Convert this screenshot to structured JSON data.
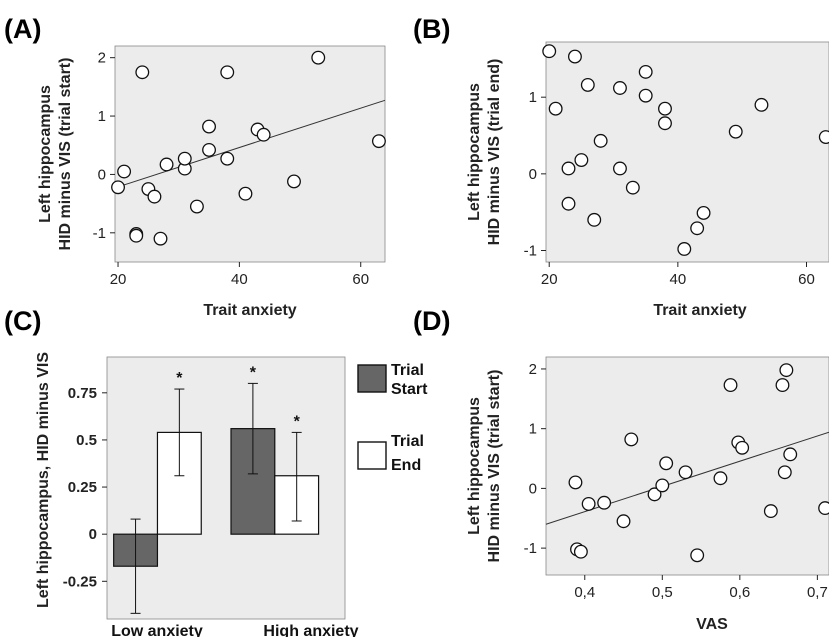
{
  "colors": {
    "plot_bg": "#ececec",
    "point_fill": "#ffffff",
    "point_stroke": "#111111",
    "fit_line": "#333333",
    "bar_start": "#666666",
    "bar_end": "#ffffff",
    "text": "#222222"
  },
  "chart_data": [
    {
      "id": "A",
      "label": "(A)",
      "type": "scatter",
      "xlabel": "Trait anxiety",
      "ylabel_line1": "Left hippocampus",
      "ylabel_line2": "HID minus VIS (trial start)",
      "xlim": [
        19.5,
        64
      ],
      "ylim": [
        -1.5,
        2.2
      ],
      "xticks": [
        20,
        40,
        60
      ],
      "yticks": [
        -1,
        0,
        1,
        2
      ],
      "fit_line": {
        "x": [
          19.5,
          64
        ],
        "y": [
          -0.23,
          1.27
        ]
      },
      "points": [
        {
          "x": 20,
          "y": -0.22
        },
        {
          "x": 21,
          "y": 0.05
        },
        {
          "x": 23,
          "y": -1.02
        },
        {
          "x": 23,
          "y": -1.05
        },
        {
          "x": 24,
          "y": 1.75
        },
        {
          "x": 25,
          "y": -0.25
        },
        {
          "x": 26,
          "y": -0.38
        },
        {
          "x": 27,
          "y": -1.1
        },
        {
          "x": 28,
          "y": 0.17
        },
        {
          "x": 31,
          "y": 0.1
        },
        {
          "x": 31,
          "y": 0.27
        },
        {
          "x": 33,
          "y": -0.55
        },
        {
          "x": 35,
          "y": 0.82
        },
        {
          "x": 35,
          "y": 0.42
        },
        {
          "x": 38,
          "y": 1.75
        },
        {
          "x": 38,
          "y": 0.27
        },
        {
          "x": 41,
          "y": -0.33
        },
        {
          "x": 43,
          "y": 0.77
        },
        {
          "x": 44,
          "y": 0.68
        },
        {
          "x": 49,
          "y": -0.12
        },
        {
          "x": 53,
          "y": 2.0
        },
        {
          "x": 63,
          "y": 0.57
        }
      ]
    },
    {
      "id": "B",
      "label": "(B)",
      "type": "scatter",
      "xlabel": "Trait anxiety",
      "ylabel_line1": "Left hippocampus",
      "ylabel_line2": "HID minus VIS (trial end)",
      "xlim": [
        19.5,
        63.5
      ],
      "ylim": [
        -1.15,
        1.72
      ],
      "xticks": [
        20,
        40,
        60
      ],
      "yticks": [
        -1,
        0,
        1
      ],
      "points": [
        {
          "x": 20,
          "y": 1.6
        },
        {
          "x": 21,
          "y": 0.85
        },
        {
          "x": 23,
          "y": 0.07
        },
        {
          "x": 23,
          "y": -0.39
        },
        {
          "x": 24,
          "y": 1.53
        },
        {
          "x": 25,
          "y": 0.18
        },
        {
          "x": 26,
          "y": 1.16
        },
        {
          "x": 27,
          "y": -0.6
        },
        {
          "x": 28,
          "y": 0.43
        },
        {
          "x": 31,
          "y": 1.12
        },
        {
          "x": 31,
          "y": 0.07
        },
        {
          "x": 33,
          "y": -0.18
        },
        {
          "x": 35,
          "y": 1.33
        },
        {
          "x": 35,
          "y": 1.02
        },
        {
          "x": 38,
          "y": 0.85
        },
        {
          "x": 38,
          "y": 0.66
        },
        {
          "x": 41,
          "y": -0.98
        },
        {
          "x": 43,
          "y": -0.71
        },
        {
          "x": 44,
          "y": -0.51
        },
        {
          "x": 49,
          "y": 0.55
        },
        {
          "x": 53,
          "y": 0.9
        },
        {
          "x": 63,
          "y": 0.48
        }
      ]
    },
    {
      "id": "C",
      "label": "(C)",
      "type": "bar",
      "ylabel": "Left hippocampus, HID minus VIS",
      "categories": [
        "Low anxiety",
        "High anxiety"
      ],
      "ylim": [
        -0.45,
        0.94
      ],
      "yticks": [
        "0.75",
        "0.5",
        "0.25",
        "0",
        "-0.25"
      ],
      "ytick_values": [
        0.75,
        0.5,
        0.25,
        0,
        -0.25
      ],
      "series": [
        {
          "name_line1": "Trial",
          "name_line2": "Start",
          "values": [
            -0.17,
            0.56
          ],
          "err_low": [
            -0.42,
            0.32
          ],
          "err_high": [
            0.08,
            0.8
          ],
          "sig": [
            "",
            "*"
          ]
        },
        {
          "name_line1": "Trial",
          "name_line2": "End",
          "values": [
            0.54,
            0.31
          ],
          "err_low": [
            0.31,
            0.07
          ],
          "err_high": [
            0.77,
            0.54
          ],
          "sig": [
            "*",
            "*"
          ]
        }
      ]
    },
    {
      "id": "D",
      "label": "(D)",
      "type": "scatter",
      "xlabel": "VAS",
      "ylabel_line1": "Left hippocampus",
      "ylabel_line2": "HID minus VIS (trial start)",
      "xlim": [
        0.35,
        0.715
      ],
      "ylim": [
        -1.45,
        2.2
      ],
      "xticks": [
        "0,4",
        "0,5",
        "0,6",
        "0,7"
      ],
      "xtick_values": [
        0.4,
        0.5,
        0.6,
        0.7
      ],
      "yticks": [
        -1,
        0,
        1,
        2
      ],
      "fit_line": {
        "x": [
          0.35,
          0.715
        ],
        "y": [
          -0.6,
          0.94
        ]
      },
      "points": [
        {
          "x": 0.388,
          "y": 0.1
        },
        {
          "x": 0.39,
          "y": -1.02
        },
        {
          "x": 0.395,
          "y": -1.06
        },
        {
          "x": 0.405,
          "y": -0.26
        },
        {
          "x": 0.425,
          "y": -0.24
        },
        {
          "x": 0.45,
          "y": -0.55
        },
        {
          "x": 0.46,
          "y": 0.82
        },
        {
          "x": 0.49,
          "y": -0.1
        },
        {
          "x": 0.5,
          "y": 0.05
        },
        {
          "x": 0.505,
          "y": 0.42
        },
        {
          "x": 0.53,
          "y": 0.27
        },
        {
          "x": 0.545,
          "y": -1.12
        },
        {
          "x": 0.575,
          "y": 0.17
        },
        {
          "x": 0.588,
          "y": 1.73
        },
        {
          "x": 0.598,
          "y": 0.77
        },
        {
          "x": 0.603,
          "y": 0.68
        },
        {
          "x": 0.64,
          "y": -0.38
        },
        {
          "x": 0.655,
          "y": 1.73
        },
        {
          "x": 0.658,
          "y": 0.27
        },
        {
          "x": 0.66,
          "y": 1.98
        },
        {
          "x": 0.665,
          "y": 0.57
        },
        {
          "x": 0.71,
          "y": -0.33
        }
      ]
    }
  ]
}
